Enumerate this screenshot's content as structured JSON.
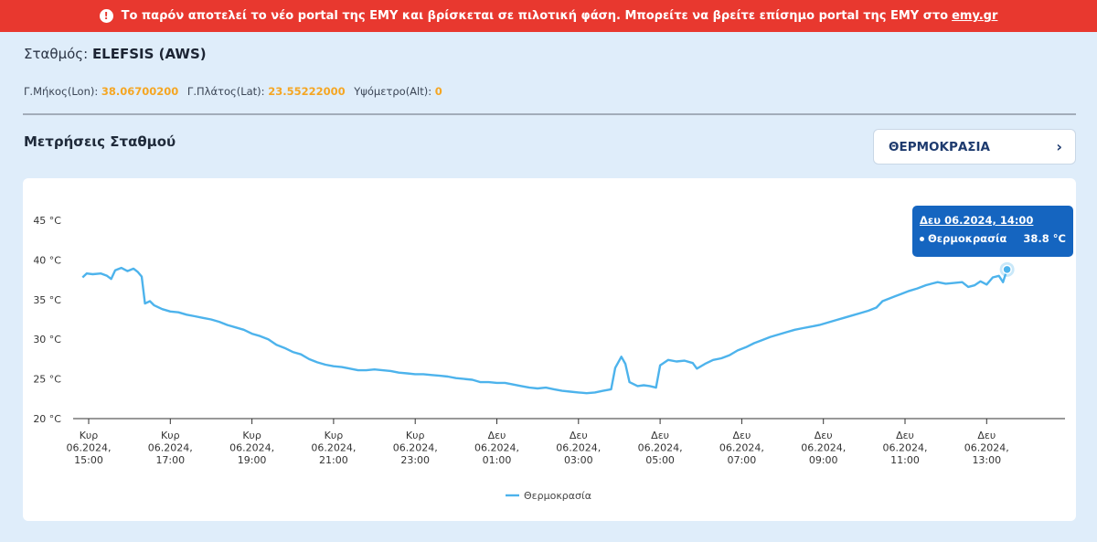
{
  "banner": {
    "text": "Το παρόν αποτελεί το νέο portal της ΕΜΥ και βρίσκεται σε πιλοτική φάση. Μπορείτε να βρείτε επίσημο portal της ΕΜΥ στο",
    "link": "emy.gr",
    "icon": "alert-circle-icon"
  },
  "station": {
    "label": "Σταθμός:",
    "name": "ELEFSIS (AWS)"
  },
  "coords": {
    "lon_label": "Γ.Μήκος(Lon):",
    "lon": "38.06700200",
    "lat_label": "Γ.Πλάτος(Lat):",
    "lat": "23.55222000",
    "alt_label": "Υψόμετρο(Alt):",
    "alt": "0"
  },
  "measurements": {
    "title": "Μετρήσεις Σταθμού",
    "selector": "ΘΕΡΜΟΚΡΑΣΙΑ",
    "selector_icon": "chevron-right-icon"
  },
  "tooltip": {
    "date": "Δευ 06.2024, 14:00",
    "series": "Θερμοκρασία",
    "value": "38.8 °C"
  },
  "colors": {
    "line": "#4db3ec",
    "banner": "#e8382f",
    "tooltip": "#1565c0",
    "highlight": "#f5a623"
  },
  "chart_data": {
    "type": "line",
    "ylim": [
      20,
      45
    ],
    "yticks": [
      {
        "v": 20,
        "label": "20 °C"
      },
      {
        "v": 25,
        "label": "25 °C"
      },
      {
        "v": 30,
        "label": "30 °C"
      },
      {
        "v": 35,
        "label": "35 °C"
      },
      {
        "v": 40,
        "label": "40 °C"
      },
      {
        "v": 45,
        "label": "45 °C"
      }
    ],
    "xticks": [
      {
        "h": 15,
        "lines": [
          "Κυρ",
          "06.2024,",
          "15:00"
        ]
      },
      {
        "h": 17,
        "lines": [
          "Κυρ",
          "06.2024,",
          "17:00"
        ]
      },
      {
        "h": 19,
        "lines": [
          "Κυρ",
          "06.2024,",
          "19:00"
        ]
      },
      {
        "h": 21,
        "lines": [
          "Κυρ",
          "06.2024,",
          "21:00"
        ]
      },
      {
        "h": 23,
        "lines": [
          "Κυρ",
          "06.2024,",
          "23:00"
        ]
      },
      {
        "h": 25,
        "lines": [
          "Δευ",
          "06.2024,",
          "01:00"
        ]
      },
      {
        "h": 27,
        "lines": [
          "Δευ",
          "06.2024,",
          "03:00"
        ]
      },
      {
        "h": 29,
        "lines": [
          "Δευ",
          "06.2024,",
          "05:00"
        ]
      },
      {
        "h": 31,
        "lines": [
          "Δευ",
          "06.2024,",
          "07:00"
        ]
      },
      {
        "h": 33,
        "lines": [
          "Δευ",
          "06.2024,",
          "09:00"
        ]
      },
      {
        "h": 35,
        "lines": [
          "Δευ",
          "06.2024,",
          "11:00"
        ]
      },
      {
        "h": 37,
        "lines": [
          "Δευ",
          "06.2024,",
          "13:00"
        ]
      }
    ],
    "series": [
      {
        "name": "Θερμοκρασία",
        "points": [
          [
            14.85,
            37.8
          ],
          [
            14.95,
            38.3
          ],
          [
            15.1,
            38.2
          ],
          [
            15.3,
            38.3
          ],
          [
            15.45,
            38.0
          ],
          [
            15.55,
            37.6
          ],
          [
            15.65,
            38.7
          ],
          [
            15.8,
            39.0
          ],
          [
            15.95,
            38.6
          ],
          [
            16.1,
            38.9
          ],
          [
            16.2,
            38.5
          ],
          [
            16.3,
            37.9
          ],
          [
            16.38,
            34.5
          ],
          [
            16.5,
            34.8
          ],
          [
            16.6,
            34.3
          ],
          [
            16.8,
            33.8
          ],
          [
            17.0,
            33.5
          ],
          [
            17.2,
            33.4
          ],
          [
            17.4,
            33.1
          ],
          [
            17.6,
            32.9
          ],
          [
            17.8,
            32.7
          ],
          [
            18.0,
            32.5
          ],
          [
            18.2,
            32.2
          ],
          [
            18.4,
            31.8
          ],
          [
            18.6,
            31.5
          ],
          [
            18.8,
            31.2
          ],
          [
            19.0,
            30.7
          ],
          [
            19.2,
            30.4
          ],
          [
            19.4,
            30.0
          ],
          [
            19.6,
            29.3
          ],
          [
            19.8,
            28.9
          ],
          [
            20.0,
            28.4
          ],
          [
            20.2,
            28.1
          ],
          [
            20.4,
            27.5
          ],
          [
            20.6,
            27.1
          ],
          [
            20.8,
            26.8
          ],
          [
            21.0,
            26.6
          ],
          [
            21.2,
            26.5
          ],
          [
            21.4,
            26.3
          ],
          [
            21.6,
            26.1
          ],
          [
            21.8,
            26.1
          ],
          [
            22.0,
            26.2
          ],
          [
            22.2,
            26.1
          ],
          [
            22.4,
            26.0
          ],
          [
            22.6,
            25.8
          ],
          [
            22.8,
            25.7
          ],
          [
            23.0,
            25.6
          ],
          [
            23.2,
            25.6
          ],
          [
            23.4,
            25.5
          ],
          [
            23.6,
            25.4
          ],
          [
            23.8,
            25.3
          ],
          [
            24.0,
            25.1
          ],
          [
            24.2,
            25.0
          ],
          [
            24.4,
            24.9
          ],
          [
            24.6,
            24.6
          ],
          [
            24.8,
            24.6
          ],
          [
            25.0,
            24.5
          ],
          [
            25.2,
            24.5
          ],
          [
            25.4,
            24.3
          ],
          [
            25.6,
            24.1
          ],
          [
            25.8,
            23.9
          ],
          [
            26.0,
            23.8
          ],
          [
            26.2,
            23.9
          ],
          [
            26.4,
            23.7
          ],
          [
            26.6,
            23.5
          ],
          [
            26.8,
            23.4
          ],
          [
            27.0,
            23.3
          ],
          [
            27.2,
            23.2
          ],
          [
            27.4,
            23.3
          ],
          [
            27.6,
            23.5
          ],
          [
            27.8,
            23.7
          ],
          [
            27.9,
            26.4
          ],
          [
            28.05,
            27.8
          ],
          [
            28.15,
            26.9
          ],
          [
            28.25,
            24.6
          ],
          [
            28.45,
            24.1
          ],
          [
            28.6,
            24.2
          ],
          [
            28.75,
            24.1
          ],
          [
            28.9,
            23.9
          ],
          [
            29.0,
            26.7
          ],
          [
            29.2,
            27.4
          ],
          [
            29.4,
            27.2
          ],
          [
            29.6,
            27.3
          ],
          [
            29.8,
            27.0
          ],
          [
            29.9,
            26.3
          ],
          [
            30.1,
            26.9
          ],
          [
            30.3,
            27.4
          ],
          [
            30.5,
            27.6
          ],
          [
            30.7,
            28.0
          ],
          [
            30.9,
            28.6
          ],
          [
            31.1,
            29.0
          ],
          [
            31.3,
            29.5
          ],
          [
            31.5,
            29.9
          ],
          [
            31.7,
            30.3
          ],
          [
            31.9,
            30.6
          ],
          [
            32.1,
            30.9
          ],
          [
            32.3,
            31.2
          ],
          [
            32.5,
            31.4
          ],
          [
            32.7,
            31.6
          ],
          [
            32.9,
            31.8
          ],
          [
            33.1,
            32.1
          ],
          [
            33.3,
            32.4
          ],
          [
            33.5,
            32.7
          ],
          [
            33.7,
            33.0
          ],
          [
            33.9,
            33.3
          ],
          [
            34.1,
            33.6
          ],
          [
            34.3,
            34.0
          ],
          [
            34.45,
            34.8
          ],
          [
            34.6,
            35.1
          ],
          [
            34.75,
            35.4
          ],
          [
            34.9,
            35.7
          ],
          [
            35.1,
            36.1
          ],
          [
            35.3,
            36.4
          ],
          [
            35.5,
            36.8
          ],
          [
            35.65,
            37.0
          ],
          [
            35.8,
            37.2
          ],
          [
            36.0,
            37.0
          ],
          [
            36.2,
            37.1
          ],
          [
            36.4,
            37.2
          ],
          [
            36.55,
            36.6
          ],
          [
            36.7,
            36.8
          ],
          [
            36.85,
            37.3
          ],
          [
            37.0,
            36.9
          ],
          [
            37.15,
            37.8
          ],
          [
            37.3,
            38.0
          ],
          [
            37.4,
            37.2
          ],
          [
            37.5,
            38.8
          ]
        ]
      }
    ],
    "legend": "bottom-center",
    "grid": false
  }
}
